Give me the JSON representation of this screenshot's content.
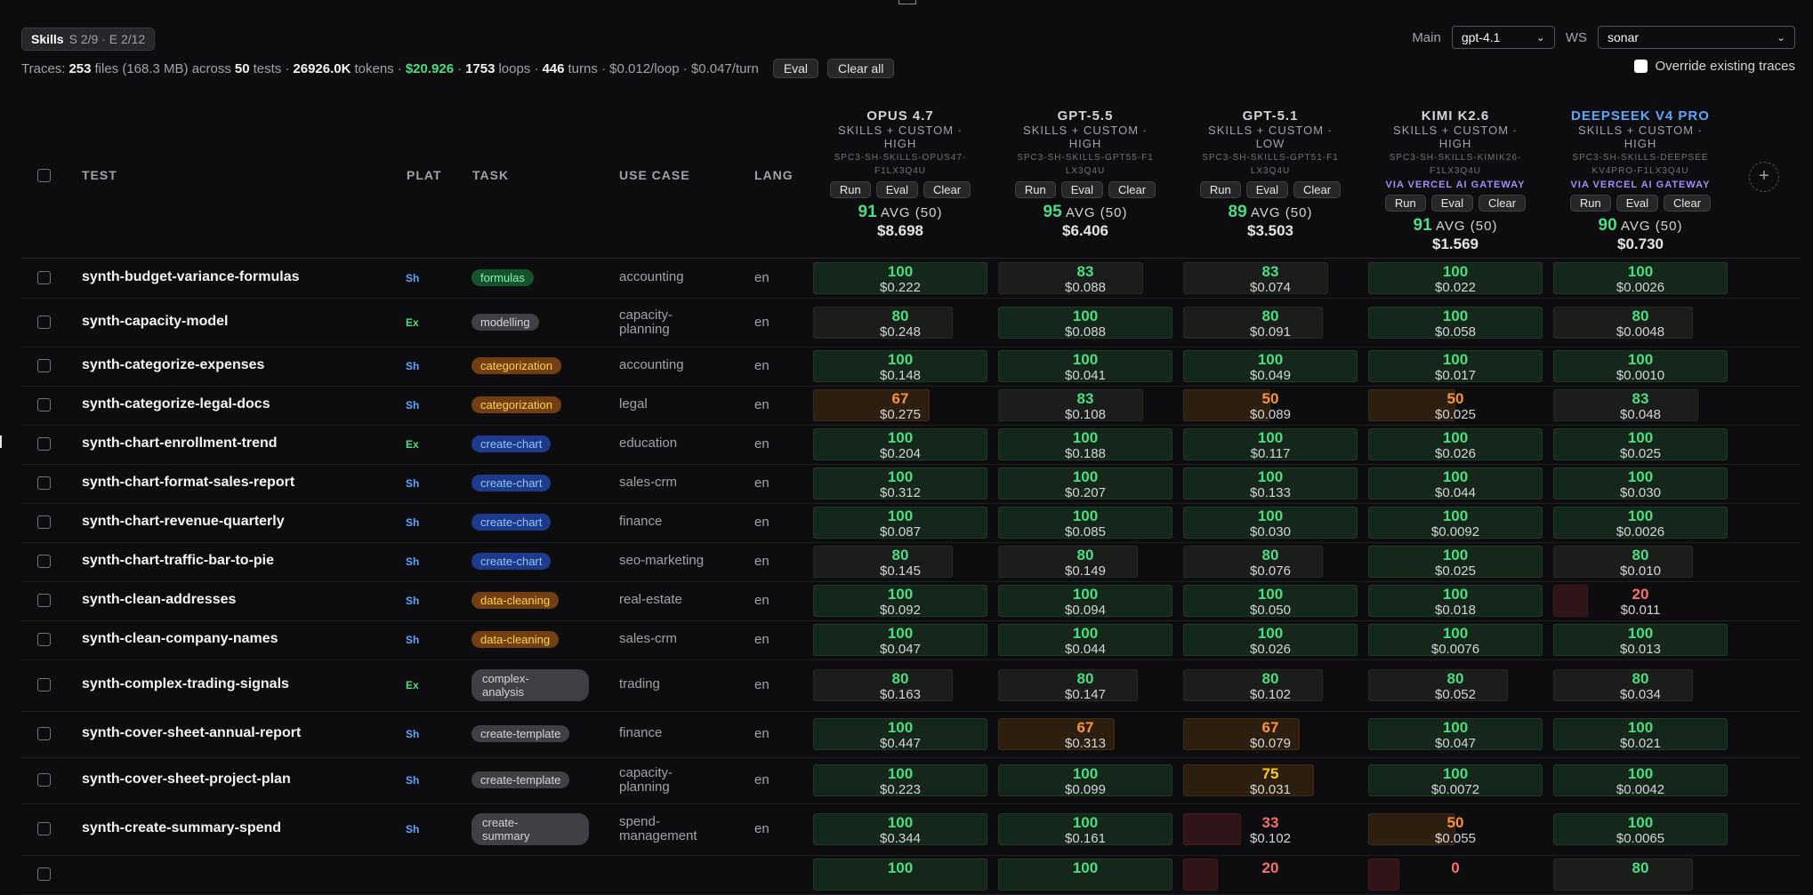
{
  "filter": {
    "skills_label": "Skills",
    "skills_counts": "S 2/9 · E 2/12"
  },
  "traces": {
    "prefix": "Traces:",
    "files": "253",
    "files_suffix": "files (168.3 MB) across",
    "tests": "50",
    "tests_suffix": "tests ·",
    "tokens": "26926.0K",
    "tokens_suffix": "tokens ·",
    "cost": "$20.926",
    "cost_suffix": "·",
    "loops": "1753",
    "loops_suffix": "loops ·",
    "turns": "446",
    "turns_suffix": "turns · $0.012/loop · $0.047/turn",
    "eval_button": "Eval",
    "clear_all_button": "Clear all"
  },
  "controls": {
    "main_label": "Main",
    "main_value": "gpt-4.1",
    "ws_label": "WS",
    "ws_value": "sonar",
    "override_label": "Override existing traces"
  },
  "columns": {
    "test": "TEST",
    "plat": "PLAT",
    "task": "TASK",
    "use_case": "USE CASE",
    "lang": "LANG"
  },
  "model_buttons": {
    "run": "Run",
    "eval": "Eval",
    "clear": "Clear"
  },
  "models": [
    {
      "name": "OPUS 4.7",
      "sub1": "SKILLS + CUSTOM ·",
      "sub2": "HIGH",
      "id1": "SPC3-SH-SKILLS-OPUS47-",
      "id2": "F1LX3Q4U",
      "via": "",
      "avg": "91",
      "avg_label": "AVG (50)",
      "cost": "$8.698"
    },
    {
      "name": "GPT-5.5",
      "sub1": "SKILLS + CUSTOM ·",
      "sub2": "HIGH",
      "id1": "SPC3-SH-SKILLS-GPT55-F1",
      "id2": "LX3Q4U",
      "via": "",
      "avg": "95",
      "avg_label": "AVG (50)",
      "cost": "$6.406"
    },
    {
      "name": "GPT-5.1",
      "sub1": "SKILLS + CUSTOM ·",
      "sub2": "LOW",
      "id1": "SPC3-SH-SKILLS-GPT51-F1",
      "id2": "LX3Q4U",
      "via": "",
      "avg": "89",
      "avg_label": "AVG (50)",
      "cost": "$3.503"
    },
    {
      "name": "KIMI K2.6",
      "sub1": "SKILLS + CUSTOM ·",
      "sub2": "HIGH",
      "id1": "SPC3-SH-SKILLS-KIMIK26-",
      "id2": "F1LX3Q4U",
      "via": "VIA VERCEL AI GATEWAY",
      "avg": "91",
      "avg_label": "AVG (50)",
      "cost": "$1.569"
    },
    {
      "name": "DEEPSEEK V4 PRO",
      "sub1": "SKILLS + CUSTOM ·",
      "sub2": "HIGH",
      "id1": "SPC3-SH-SKILLS-DEEPSEE",
      "id2": "KV4PRO-F1LX3Q4U",
      "via": "VIA VERCEL AI GATEWAY",
      "avg": "90",
      "avg_label": "AVG (50)",
      "cost": "$0.730"
    }
  ],
  "rows": [
    {
      "test": "synth-budget-variance-formulas",
      "plat": "Sh",
      "task": "formulas",
      "use_case": [
        "accounting"
      ],
      "lang": "en",
      "cells": [
        [
          "100",
          "$0.222"
        ],
        [
          "83",
          "$0.088"
        ],
        [
          "83",
          "$0.074"
        ],
        [
          "100",
          "$0.022"
        ],
        [
          "100",
          "$0.0026"
        ]
      ]
    },
    {
      "test": "synth-capacity-model",
      "plat": "Ex",
      "task": "modelling",
      "use_case": [
        "capacity-",
        "planning"
      ],
      "lang": "en",
      "cells": [
        [
          "80",
          "$0.248"
        ],
        [
          "100",
          "$0.088"
        ],
        [
          "80",
          "$0.091"
        ],
        [
          "100",
          "$0.058"
        ],
        [
          "80",
          "$0.0048"
        ]
      ]
    },
    {
      "test": "synth-categorize-expenses",
      "plat": "Sh",
      "task": "categorization",
      "use_case": [
        "accounting"
      ],
      "lang": "en",
      "cells": [
        [
          "100",
          "$0.148"
        ],
        [
          "100",
          "$0.041"
        ],
        [
          "100",
          "$0.049"
        ],
        [
          "100",
          "$0.017"
        ],
        [
          "100",
          "$0.0010"
        ]
      ]
    },
    {
      "test": "synth-categorize-legal-docs",
      "plat": "Sh",
      "task": "categorization",
      "use_case": [
        "legal"
      ],
      "lang": "en",
      "cells": [
        [
          "67",
          "$0.275"
        ],
        [
          "83",
          "$0.108"
        ],
        [
          "50",
          "$0.089"
        ],
        [
          "50",
          "$0.025"
        ],
        [
          "83",
          "$0.048"
        ]
      ]
    },
    {
      "test": "synth-chart-enrollment-trend",
      "plat": "Ex",
      "task": "create-chart",
      "use_case": [
        "education"
      ],
      "lang": "en",
      "cells": [
        [
          "100",
          "$0.204"
        ],
        [
          "100",
          "$0.188"
        ],
        [
          "100",
          "$0.117"
        ],
        [
          "100",
          "$0.026"
        ],
        [
          "100",
          "$0.025"
        ]
      ]
    },
    {
      "test": "synth-chart-format-sales-report",
      "plat": "Sh",
      "task": "create-chart",
      "use_case": [
        "sales-crm"
      ],
      "lang": "en",
      "cells": [
        [
          "100",
          "$0.312"
        ],
        [
          "100",
          "$0.207"
        ],
        [
          "100",
          "$0.133"
        ],
        [
          "100",
          "$0.044"
        ],
        [
          "100",
          "$0.030"
        ]
      ]
    },
    {
      "test": "synth-chart-revenue-quarterly",
      "plat": "Sh",
      "task": "create-chart",
      "use_case": [
        "finance"
      ],
      "lang": "en",
      "cells": [
        [
          "100",
          "$0.087"
        ],
        [
          "100",
          "$0.085"
        ],
        [
          "100",
          "$0.030"
        ],
        [
          "100",
          "$0.0092"
        ],
        [
          "100",
          "$0.0026"
        ]
      ]
    },
    {
      "test": "synth-chart-traffic-bar-to-pie",
      "plat": "Sh",
      "task": "create-chart",
      "use_case": [
        "seo-marketing"
      ],
      "lang": "en",
      "cells": [
        [
          "80",
          "$0.145"
        ],
        [
          "80",
          "$0.149"
        ],
        [
          "80",
          "$0.076"
        ],
        [
          "100",
          "$0.025"
        ],
        [
          "80",
          "$0.010"
        ]
      ]
    },
    {
      "test": "synth-clean-addresses",
      "plat": "Sh",
      "task": "data-cleaning",
      "use_case": [
        "real-estate"
      ],
      "lang": "en",
      "cells": [
        [
          "100",
          "$0.092"
        ],
        [
          "100",
          "$0.094"
        ],
        [
          "100",
          "$0.050"
        ],
        [
          "100",
          "$0.018"
        ],
        [
          "20",
          "$0.011"
        ]
      ]
    },
    {
      "test": "synth-clean-company-names",
      "plat": "Sh",
      "task": "data-cleaning",
      "use_case": [
        "sales-crm"
      ],
      "lang": "en",
      "cells": [
        [
          "100",
          "$0.047"
        ],
        [
          "100",
          "$0.044"
        ],
        [
          "100",
          "$0.026"
        ],
        [
          "100",
          "$0.0076"
        ],
        [
          "100",
          "$0.013"
        ]
      ]
    },
    {
      "test": "synth-complex-trading-signals",
      "plat": "Ex",
      "task": "complex-analysis",
      "use_case": [
        "trading"
      ],
      "lang": "en",
      "cells": [
        [
          "80",
          "$0.163"
        ],
        [
          "80",
          "$0.147"
        ],
        [
          "80",
          "$0.102"
        ],
        [
          "80",
          "$0.052"
        ],
        [
          "80",
          "$0.034"
        ]
      ]
    },
    {
      "test": "synth-cover-sheet-annual-report",
      "plat": "Sh",
      "task": "create-template",
      "use_case": [
        "finance"
      ],
      "lang": "en",
      "cells": [
        [
          "100",
          "$0.447"
        ],
        [
          "67",
          "$0.313"
        ],
        [
          "67",
          "$0.079"
        ],
        [
          "100",
          "$0.047"
        ],
        [
          "100",
          "$0.021"
        ]
      ]
    },
    {
      "test": "synth-cover-sheet-project-plan",
      "plat": "Sh",
      "task": "create-template",
      "use_case": [
        "capacity-",
        "planning"
      ],
      "lang": "en",
      "cells": [
        [
          "100",
          "$0.223"
        ],
        [
          "100",
          "$0.099"
        ],
        [
          "75",
          "$0.031"
        ],
        [
          "100",
          "$0.0072"
        ],
        [
          "100",
          "$0.0042"
        ]
      ]
    },
    {
      "test": "synth-create-summary-spend",
      "plat": "Sh",
      "task": "create-summary",
      "use_case": [
        "spend-",
        "management"
      ],
      "lang": "en",
      "cells": [
        [
          "100",
          "$0.344"
        ],
        [
          "100",
          "$0.161"
        ],
        [
          "33",
          "$0.102"
        ],
        [
          "50",
          "$0.055"
        ],
        [
          "100",
          "$0.0065"
        ]
      ]
    },
    {
      "test": "",
      "plat": "",
      "task": "",
      "use_case": [
        ""
      ],
      "lang": "",
      "cells": [
        [
          "100",
          ""
        ],
        [
          "100",
          ""
        ],
        [
          "20",
          ""
        ],
        [
          "0",
          ""
        ],
        [
          "80",
          ""
        ]
      ]
    }
  ]
}
